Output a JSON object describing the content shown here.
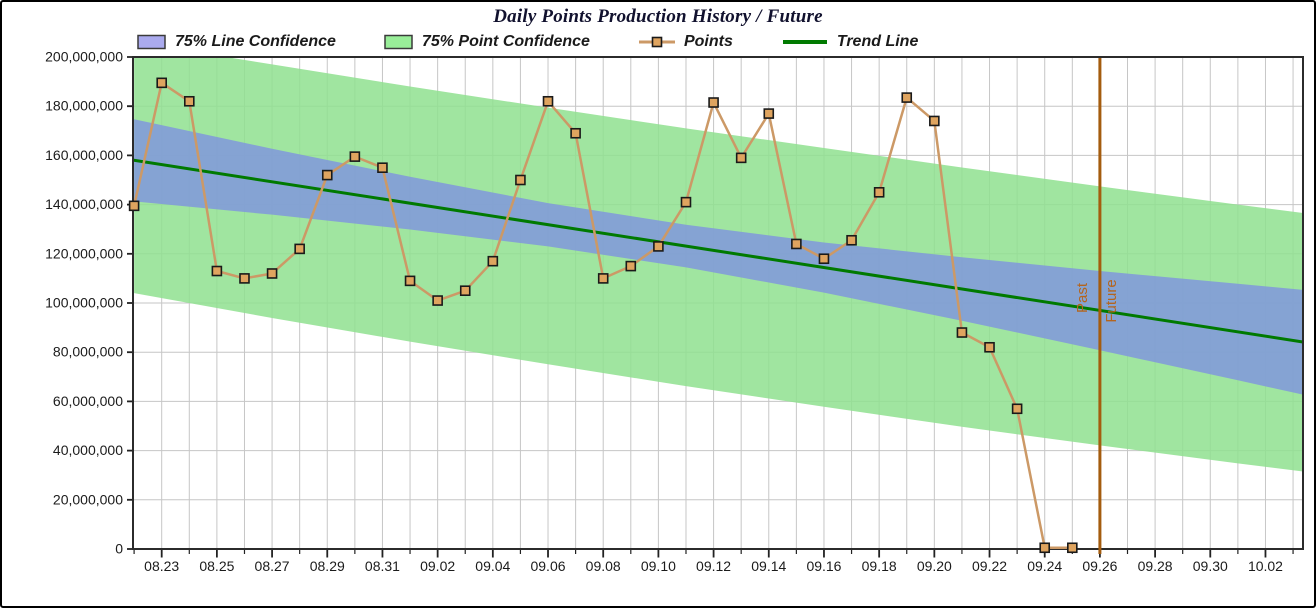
{
  "chart_data": {
    "type": "line",
    "title": "Daily Points Production History / Future",
    "legend": [
      {
        "label": "75% Line Confidence",
        "swatch": "box",
        "color": "#aaaaee"
      },
      {
        "label": "75% Point Confidence",
        "swatch": "box",
        "color": "#99ee99"
      },
      {
        "label": "Points",
        "swatch": "line-marker",
        "color": "#cc9966"
      },
      {
        "label": "Trend Line",
        "swatch": "line",
        "color": "#007a00"
      }
    ],
    "y_axis": {
      "min": 0,
      "max": 200000000,
      "tick_interval": 20000000,
      "tick_labels": [
        "0",
        "20,000,000",
        "40,000,000",
        "60,000,000",
        "80,000,000",
        "100,000,000",
        "120,000,000",
        "140,000,000",
        "160,000,000",
        "180,000,000",
        "200,000,000"
      ],
      "grid": "on"
    },
    "x_axis": {
      "days_total": 42.4,
      "first_label_day": 1,
      "label_step_days": 2,
      "labels": [
        "08.23",
        "08.25",
        "08.27",
        "08.29",
        "08.31",
        "09.02",
        "09.04",
        "09.06",
        "09.08",
        "09.10",
        "09.12",
        "09.14",
        "09.16",
        "09.18",
        "09.20",
        "09.22",
        "09.24",
        "09.26",
        "09.28",
        "09.30",
        "10.02"
      ],
      "grid": "on"
    },
    "series": {
      "points": {
        "name": "Points",
        "dates": [
          "08.22",
          "08.23",
          "08.24",
          "08.25",
          "08.26",
          "08.27",
          "08.28",
          "08.29",
          "08.30",
          "08.31",
          "09.01",
          "09.02",
          "09.03",
          "09.04",
          "09.05",
          "09.06",
          "09.07",
          "09.08",
          "09.09",
          "09.10",
          "09.11",
          "09.12",
          "09.13",
          "09.14",
          "09.15",
          "09.16",
          "09.17",
          "09.18",
          "09.19",
          "09.20",
          "09.21",
          "09.22",
          "09.23",
          "09.24",
          "09.25"
        ],
        "values": [
          139500000,
          189500000,
          182000000,
          113000000,
          110000000,
          112000000,
          122000000,
          152000000,
          159500000,
          155000000,
          109000000,
          101000000,
          105000000,
          117000000,
          150000000,
          182000000,
          169000000,
          110000000,
          115000000,
          123000000,
          141000000,
          181500000,
          159000000,
          177000000,
          124000000,
          118000000,
          125500000,
          145000000,
          183500000,
          174000000,
          88000000,
          82000000,
          57000000,
          500000,
          500000
        ]
      },
      "trend_line": {
        "name": "Trend Line",
        "points": [
          {
            "day": 0,
            "value": 158000000
          },
          {
            "day": 42.5,
            "value": 83900000
          }
        ]
      },
      "line_confidence": {
        "name": "75% Line Confidence",
        "days": [
          0,
          5,
          10,
          15,
          20,
          25,
          30,
          35,
          40,
          42.5
        ],
        "top": [
          174700000,
          162700000,
          151300000,
          140600000,
          131800000,
          124600000,
          118600000,
          113000000,
          107800000,
          105200000
        ],
        "bottom": [
          141300000,
          135900000,
          129900000,
          123000000,
          114500000,
          104200000,
          92800000,
          80800000,
          68600000,
          62400000
        ]
      },
      "point_confidence": {
        "name": "75% Point Confidence",
        "days": [
          0,
          5,
          10,
          15,
          20,
          25,
          30,
          35,
          40,
          42.5
        ],
        "top": [
          206000000,
          197000000,
          188000000,
          179400000,
          171000000,
          163000000,
          155100000,
          147400000,
          140000000,
          136400000
        ],
        "bottom": [
          104000000,
          93900000,
          84300000,
          75100000,
          66200000,
          57800000,
          49700000,
          42100000,
          34800000,
          31300000
        ]
      }
    },
    "divider": {
      "day": 35,
      "date": "09.26",
      "label_left": "Past",
      "label_right": "Future",
      "color": "#a45c0e",
      "label_color": "#b4651e"
    },
    "colors": {
      "point_confidence_fill": "#8fe08f",
      "line_confidence_fill": "#8098dc",
      "points_line": "#cc9966",
      "marker_fill": "#dfa45f",
      "marker_stroke": "#1a1a1a",
      "trend_line": "#007a00",
      "grid": "#c6c6c6",
      "axis": "#2b2b2b",
      "tick_label": "#1b1b1b"
    }
  }
}
